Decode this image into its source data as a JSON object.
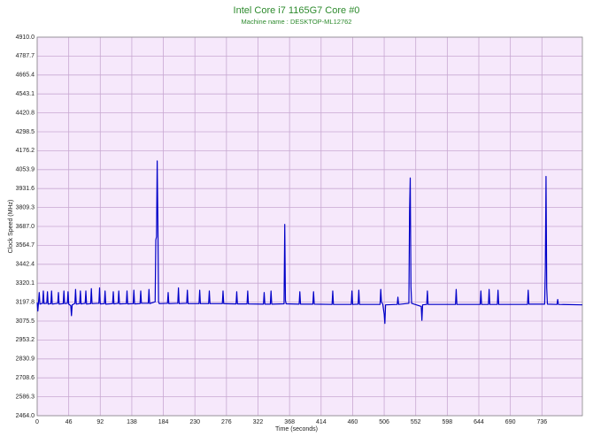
{
  "chart_data": {
    "type": "line",
    "title": "Intel Core i7 1165G7 Core #0",
    "subtitle": "Machine name : DESKTOP-ML12762",
    "x_label": "Time (seconds)",
    "y_label": "Clock Speed (MHz)",
    "xlim": [
      0,
      795
    ],
    "ylim": [
      2464.0,
      4910.0
    ],
    "xticks": [
      0,
      46,
      92,
      138,
      184,
      230,
      276,
      322,
      368,
      414,
      460,
      506,
      552,
      598,
      644,
      690,
      736
    ],
    "yticks": [
      {
        "value": 2464.0,
        "label": "2464.0"
      },
      2586.3,
      2708.6,
      2830.9,
      2953.2,
      3075.5,
      3197.8,
      3320.1,
      3442.4,
      3564.7,
      {
        "value": 3687.0,
        "label": "3687.0"
      },
      3809.3,
      3931.6,
      4053.9,
      4176.2,
      4298.5,
      4420.8,
      4543.1,
      4665.4,
      4787.7,
      {
        "value": 4910.0,
        "label": "4910.0"
      }
    ],
    "grid": true,
    "background": "#f6e8fb",
    "x": [
      0,
      1,
      2,
      3,
      4,
      8,
      9,
      10,
      14,
      15,
      16,
      20,
      21,
      22,
      30,
      31,
      32,
      38,
      39,
      40,
      44,
      45,
      46,
      49,
      50,
      51,
      55,
      56,
      57,
      62,
      63,
      64,
      70,
      71,
      72,
      78,
      79,
      80,
      90,
      91,
      92,
      98,
      99,
      100,
      110,
      111,
      112,
      118,
      119,
      120,
      130,
      131,
      132,
      140,
      141,
      142,
      150,
      151,
      152,
      162,
      163,
      164,
      172,
      173,
      174,
      175,
      176,
      177,
      178,
      190,
      191,
      192,
      205,
      206,
      207,
      218,
      219,
      220,
      236,
      237,
      238,
      250,
      251,
      252,
      270,
      271,
      272,
      290,
      291,
      292,
      306,
      307,
      308,
      330,
      331,
      332,
      340,
      341,
      342,
      360,
      361,
      362,
      363,
      382,
      383,
      384,
      402,
      403,
      404,
      430,
      431,
      432,
      458,
      459,
      460,
      468,
      469,
      470,
      500,
      501,
      502,
      504,
      506,
      507,
      508,
      525,
      526,
      527,
      542,
      543,
      544,
      545,
      546,
      560,
      561,
      562,
      568,
      569,
      570,
      610,
      611,
      612,
      646,
      647,
      648,
      658,
      659,
      660,
      671,
      672,
      673,
      715,
      716,
      717,
      740,
      741,
      742,
      743,
      744,
      758,
      759,
      760,
      795
    ],
    "series": [
      {
        "name": "Core #0",
        "color": "#0000c8",
        "values": [
          3195,
          3140,
          3200,
          3260,
          3185,
          3190,
          3270,
          3188,
          3190,
          3265,
          3185,
          3188,
          3270,
          3185,
          3190,
          3260,
          3185,
          3188,
          3270,
          3188,
          3190,
          3265,
          3185,
          3175,
          3110,
          3180,
          3190,
          3280,
          3185,
          3188,
          3270,
          3186,
          3190,
          3270,
          3185,
          3188,
          3285,
          3188,
          3190,
          3290,
          3186,
          3188,
          3270,
          3185,
          3188,
          3265,
          3186,
          3190,
          3270,
          3186,
          3188,
          3270,
          3186,
          3188,
          3275,
          3186,
          3188,
          3270,
          3190,
          3190,
          3280,
          3188,
          3200,
          3600,
          3620,
          4110,
          3720,
          3200,
          3188,
          3190,
          3260,
          3188,
          3190,
          3290,
          3188,
          3190,
          3275,
          3188,
          3188,
          3275,
          3188,
          3188,
          3270,
          3188,
          3188,
          3270,
          3188,
          3186,
          3265,
          3186,
          3186,
          3270,
          3186,
          3185,
          3260,
          3185,
          3185,
          3270,
          3185,
          3187,
          3700,
          3210,
          3187,
          3185,
          3265,
          3185,
          3185,
          3265,
          3185,
          3183,
          3270,
          3183,
          3183,
          3270,
          3183,
          3185,
          3275,
          3183,
          3183,
          3280,
          3200,
          3183,
          3120,
          3060,
          3180,
          3183,
          3230,
          3183,
          3190,
          3780,
          4000,
          3300,
          3190,
          3170,
          3080,
          3180,
          3183,
          3270,
          3183,
          3183,
          3280,
          3183,
          3183,
          3270,
          3183,
          3183,
          3280,
          3183,
          3183,
          3275,
          3183,
          3183,
          3275,
          3185,
          3185,
          3420,
          4010,
          3290,
          3185,
          3183,
          3215,
          3183,
          3180
        ]
      }
    ]
  }
}
